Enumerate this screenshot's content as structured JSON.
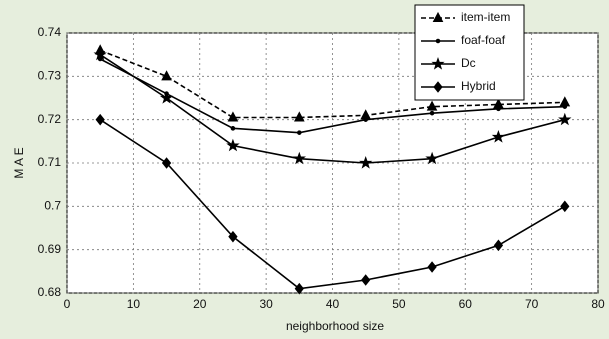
{
  "chart_data": {
    "type": "line",
    "x_label": "neighborhood size",
    "y_label": "M A E",
    "x": [
      5,
      15,
      25,
      35,
      45,
      55,
      65,
      75
    ],
    "series": [
      {
        "name": "item-item",
        "color": "#000000",
        "dash": true,
        "marker": "triangle",
        "values": [
          0.736,
          0.73,
          0.7205,
          0.7205,
          0.721,
          0.723,
          0.7235,
          0.724
        ]
      },
      {
        "name": "foaf-foaf",
        "color": "#000000",
        "dash": false,
        "marker": "dot",
        "values": [
          0.734,
          0.726,
          0.718,
          0.717,
          0.72,
          0.7215,
          0.7225,
          0.723
        ]
      },
      {
        "name": "Dc",
        "color": "#000000",
        "dash": false,
        "marker": "star",
        "values": [
          0.735,
          0.725,
          0.714,
          0.711,
          0.71,
          0.711,
          0.716,
          0.72
        ]
      },
      {
        "name": "Hybrid",
        "color": "#000000",
        "dash": false,
        "marker": "diamond",
        "values": [
          0.72,
          0.71,
          0.693,
          0.681,
          0.683,
          0.686,
          0.691,
          0.7
        ]
      }
    ],
    "xlim": [
      0,
      80
    ],
    "xticks": [
      0,
      10,
      20,
      30,
      40,
      50,
      60,
      70,
      80
    ],
    "ylim": [
      0.68,
      0.74
    ],
    "yticks": [
      0.68,
      0.69,
      0.7,
      0.71,
      0.72,
      0.73,
      0.74
    ],
    "grid": true,
    "legend": "top-right"
  }
}
